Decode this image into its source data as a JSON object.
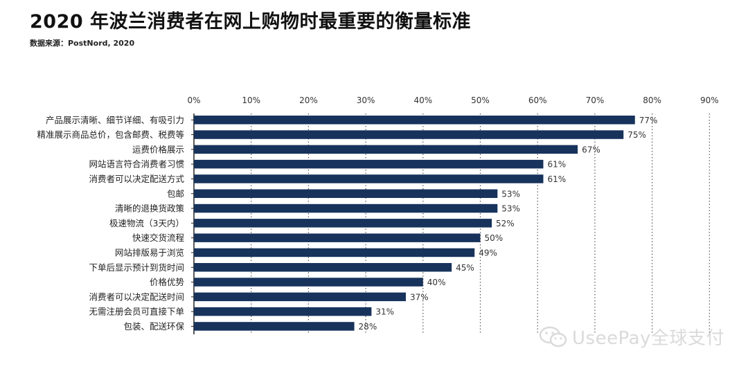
{
  "title": "2020 年波兰消费者在网上购物时最重要的衡量标准",
  "subtitle": "数据来源：PostNord, 2020",
  "watermark": {
    "text": "UseePay全球支付",
    "icon": "wechat-icon"
  },
  "colors": {
    "bar": "#17335c",
    "axis": "#222222",
    "grid": "#555555",
    "text": "#333333"
  },
  "chart_data": {
    "type": "bar",
    "orientation": "horizontal",
    "categories": [
      "产品展示清晰、细节详细、有吸引力",
      "精准展示商品总价，包含邮费、税费等",
      "运费价格展示",
      "网站语言符合消费者习惯",
      "消费者可以决定配送方式",
      "包邮",
      "清晰的退换货政策",
      "极速物流（3天内）",
      "快速交货流程",
      "网站排版易于浏览",
      "下单后显示预计到货时间",
      "价格优势",
      "消费者可以决定配送时间",
      "无需注册会员可直接下单",
      "包装、配送环保"
    ],
    "values": [
      77,
      75,
      67,
      61,
      61,
      53,
      53,
      52,
      50,
      49,
      45,
      40,
      37,
      31,
      28
    ],
    "data_labels": [
      "77%",
      "75%",
      "67%",
      "61%",
      "61%",
      "53%",
      "53%",
      "52%",
      "50%",
      "49%",
      "45%",
      "40%",
      "37%",
      "31%",
      "28%"
    ],
    "x_ticks": [
      0,
      10,
      20,
      30,
      40,
      50,
      60,
      70,
      80,
      90
    ],
    "x_tick_labels": [
      "0%",
      "10%",
      "20%",
      "30%",
      "40%",
      "50%",
      "60%",
      "70%",
      "80%",
      "90%"
    ],
    "xlim": [
      0,
      90
    ],
    "x_axis_position": "top",
    "grid": "vertical-dotted",
    "legend": "none"
  }
}
